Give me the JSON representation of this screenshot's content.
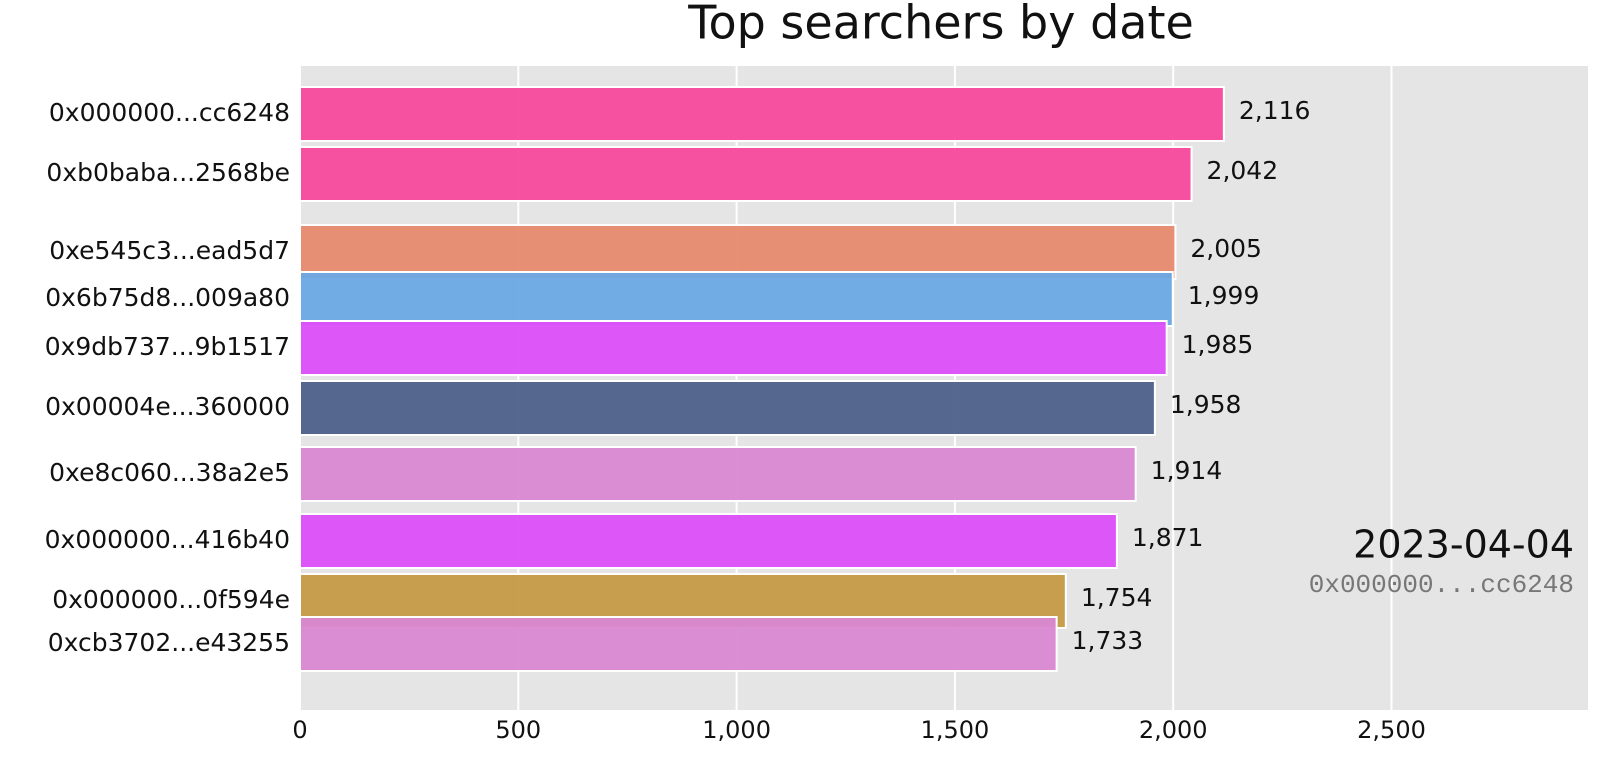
{
  "chart_data": {
    "type": "bar",
    "orientation": "horizontal",
    "title": "Top searchers by date",
    "categories": [
      "0x000000...cc6248",
      "0xb0baba...2568be",
      "0xe545c3...ead5d7",
      "0x6b75d8...009a80",
      "0x9db737...9b1517",
      "0x00004e...360000",
      "0xe8c060...38a2e5",
      "0x000000...416b40",
      "0x000000...0f594e",
      "0xcb3702...e43255"
    ],
    "values": [
      2116,
      2042,
      2005,
      1999,
      1985,
      1958,
      1914,
      1871,
      1754,
      1733
    ],
    "value_labels": [
      "2,116",
      "2,042",
      "2,005",
      "1,999",
      "1,985",
      "1,958",
      "1,914",
      "1,871",
      "1,754",
      "1,733"
    ],
    "colors": [
      "#f7489d",
      "#f7489d",
      "#e68a6e",
      "#6aa9e4",
      "#dc4ef8",
      "#4d5f8a",
      "#d988d2",
      "#dc4ef8",
      "#c49a44",
      "#d988d2"
    ],
    "xlim": [
      0,
      2950
    ],
    "xticks": [
      0,
      500,
      {
        "value": 1000,
        "label": "1,000"
      },
      {
        "value": 1500,
        "label": "1,500"
      },
      {
        "value": 2000,
        "label": "2,000"
      },
      {
        "value": 2500,
        "label": "2,500"
      }
    ],
    "grid": true,
    "annotations": [
      "2023-04-04",
      "0x000000...cc6248"
    ]
  }
}
